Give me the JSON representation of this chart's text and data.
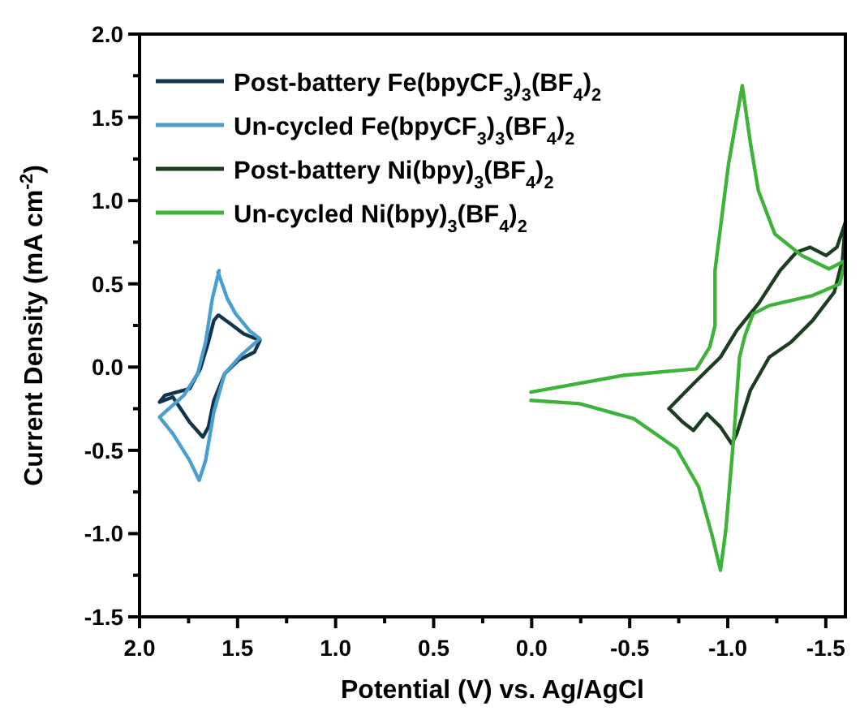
{
  "chart_data": {
    "type": "line",
    "xlabel": "Potential (V) vs. Ag/AgCl",
    "ylabel": "Current Density (mA cm$^{-2}$)",
    "xlim": [
      2.0,
      -1.6
    ],
    "ylim": [
      -1.5,
      2.0
    ],
    "xticks": [
      {
        "value": 2,
        "label": "2.0"
      },
      {
        "value": 1.75,
        "label": null
      },
      {
        "value": 1.5,
        "label": "1.5"
      },
      {
        "value": 1.25,
        "label": null
      },
      {
        "value": 1,
        "label": "1.0"
      },
      {
        "value": 0.75,
        "label": null
      },
      {
        "value": 0.5,
        "label": "0.5"
      },
      {
        "value": 0.25,
        "label": null
      },
      {
        "value": 0,
        "label": "0.0"
      },
      {
        "value": -0.25,
        "label": null
      },
      {
        "value": -0.5,
        "label": "-0.5"
      },
      {
        "value": -0.75,
        "label": null
      },
      {
        "value": -1,
        "label": "-1.0"
      },
      {
        "value": -1.25,
        "label": null
      },
      {
        "value": -1.5,
        "label": "-1.5"
      }
    ],
    "yticks": [
      {
        "value": -1.5,
        "label": "-1.5"
      },
      {
        "value": -1.25,
        "label": null
      },
      {
        "value": -1,
        "label": "-1.0"
      },
      {
        "value": -0.75,
        "label": null
      },
      {
        "value": -0.5,
        "label": "-0.5"
      },
      {
        "value": -0.25,
        "label": null
      },
      {
        "value": 0,
        "label": "0.0"
      },
      {
        "value": 0.25,
        "label": null
      },
      {
        "value": 0.5,
        "label": "0.5"
      },
      {
        "value": 0.75,
        "label": null
      },
      {
        "value": 1,
        "label": "1.0"
      },
      {
        "value": 1.25,
        "label": null
      },
      {
        "value": 1.5,
        "label": "1.5"
      },
      {
        "value": 1.75,
        "label": null
      },
      {
        "value": 2,
        "label": "2.0"
      }
    ],
    "grid": false,
    "legend": "top left",
    "marker": "none",
    "line_style": "solid",
    "series": [
      {
        "name": "Post-battery Fe(bpyCF$_{3}$)$_{3}$(BF$_{4}$)$_{2}$",
        "color": "#12344d",
        "x": [
          1.594,
          1.525,
          1.469,
          1.386,
          1.414,
          1.497,
          1.566,
          1.621,
          1.649,
          1.677,
          1.745,
          1.83,
          1.898,
          1.871,
          1.745,
          1.69,
          1.649,
          1.621,
          1.6
        ],
        "values": [
          0.31,
          0.25,
          0.2,
          0.16,
          0.09,
          0.04,
          -0.04,
          -0.2,
          -0.36,
          -0.42,
          -0.33,
          -0.18,
          -0.21,
          -0.17,
          -0.13,
          -0.01,
          0.15,
          0.28,
          0.31
        ]
      },
      {
        "name": "Un-cycled Fe(bpyCF$_{3}$)$_{3}$(BF$_{4}$)$_{2}$",
        "color": "#4a9fd0",
        "x": [
          1.594,
          1.629,
          1.663,
          1.704,
          1.774,
          1.898,
          1.83,
          1.745,
          1.696,
          1.663,
          1.621,
          1.566,
          1.483,
          1.386,
          1.44,
          1.51,
          1.552,
          1.6
        ],
        "values": [
          0.58,
          0.41,
          0.15,
          -0.04,
          -0.17,
          -0.3,
          -0.4,
          -0.56,
          -0.68,
          -0.56,
          -0.27,
          -0.04,
          0.07,
          0.17,
          0.22,
          0.32,
          0.41,
          0.57
        ]
      },
      {
        "name": "Post-battery Ni(bpy)$_{3}$(BF$_{4}$)$_{2}$",
        "color": "#1b3d20",
        "x": [
          -0.7,
          -0.825,
          -0.963,
          -1.046,
          -1.156,
          -1.267,
          -1.35,
          -1.42,
          -1.502,
          -1.557,
          -1.6,
          -1.585,
          -1.543,
          -1.433,
          -1.323,
          -1.212,
          -1.115,
          -1.046,
          -1.02,
          -0.963,
          -0.894,
          -0.825,
          -0.77,
          -0.71
        ],
        "values": [
          -0.25,
          -0.1,
          0.06,
          0.22,
          0.38,
          0.58,
          0.69,
          0.72,
          0.67,
          0.72,
          0.87,
          0.64,
          0.45,
          0.28,
          0.15,
          0.06,
          -0.14,
          -0.4,
          -0.46,
          -0.36,
          -0.28,
          -0.38,
          -0.33,
          -0.26
        ]
      },
      {
        "name": "Un-cycled Ni(bpy)$_{3}$(BF$_{4}$)$_{2}$",
        "color": "#3db33a",
        "x": [
          0.004,
          -0.465,
          -0.84,
          -0.908,
          -0.935,
          -0.935,
          -1.004,
          -1.074,
          -1.115,
          -1.156,
          -1.24,
          -1.377,
          -1.516,
          -1.6,
          -1.571,
          -1.433,
          -1.213,
          -1.129,
          -1.088,
          -1.06,
          -1.032,
          -0.99,
          -0.963,
          -0.92,
          -0.852,
          -0.74,
          -0.521,
          -0.245,
          0.004
        ],
        "values": [
          -0.15,
          -0.05,
          -0.01,
          0.12,
          0.25,
          0.58,
          1.22,
          1.69,
          1.35,
          1.06,
          0.8,
          0.67,
          0.59,
          0.64,
          0.5,
          0.43,
          0.37,
          0.32,
          0.19,
          0.06,
          -0.4,
          -0.98,
          -1.22,
          -1.01,
          -0.72,
          -0.49,
          -0.31,
          -0.22,
          -0.2
        ]
      }
    ]
  }
}
